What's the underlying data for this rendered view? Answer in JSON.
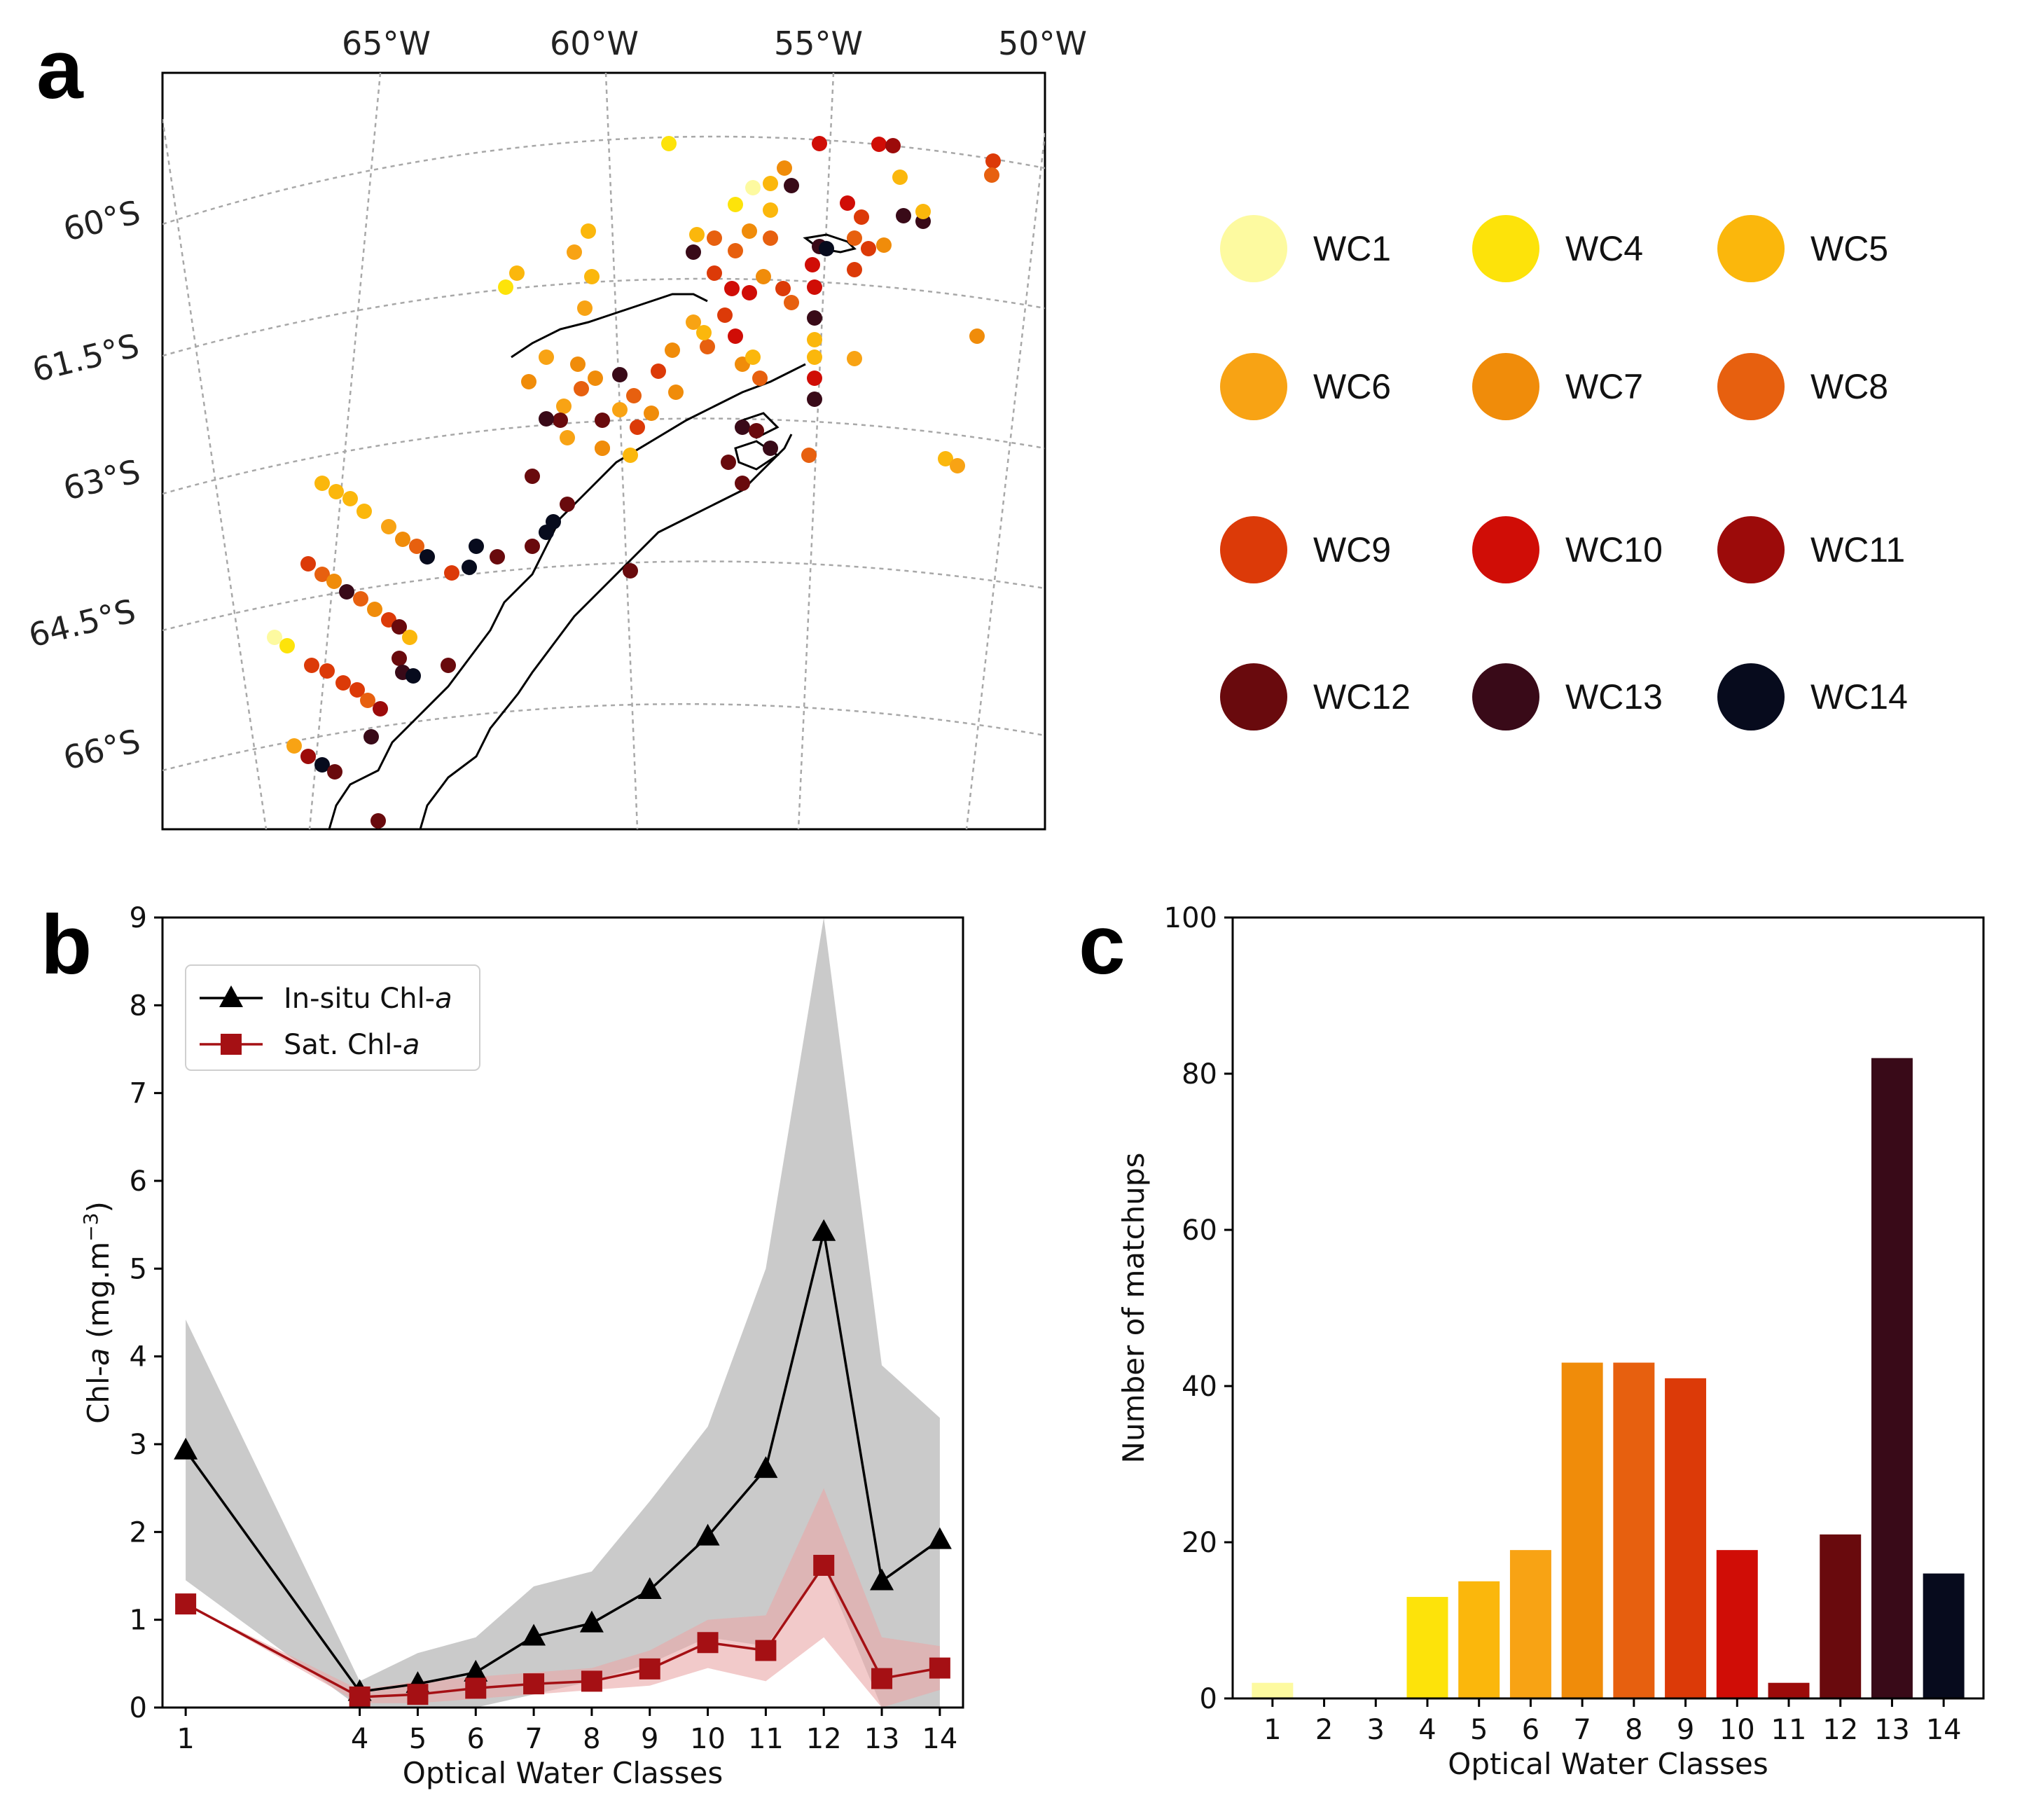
{
  "panels": {
    "a": "a",
    "b": "b",
    "c": "c"
  },
  "map": {
    "lon_labels": [
      "65°W",
      "60°W",
      "55°W",
      "50°W"
    ],
    "lat_labels": [
      "60°S",
      "61.5°S",
      "63°S",
      "64.5°S",
      "66°S"
    ],
    "legend": [
      {
        "label": "WC1",
        "color": "#fdfaa0"
      },
      {
        "label": "WC4",
        "color": "#fde30a"
      },
      {
        "label": "WC5",
        "color": "#fbb70c"
      },
      {
        "label": "WC6",
        "color": "#f8a314"
      },
      {
        "label": "WC7",
        "color": "#f08c0a"
      },
      {
        "label": "WC8",
        "color": "#e7600f"
      },
      {
        "label": "WC9",
        "color": "#dc3a08"
      },
      {
        "label": "WC10",
        "color": "#d00d06"
      },
      {
        "label": "WC11",
        "color": "#9c0b0a"
      },
      {
        "label": "WC12",
        "color": "#690a0d"
      },
      {
        "label": "WC13",
        "color": "#390a18"
      },
      {
        "label": "WC14",
        "color": "#070b1d"
      }
    ]
  },
  "chart_data": [
    {
      "type": "line",
      "panel": "b",
      "xlabel": "Optical Water Classes",
      "ylabel": "Chl-a (mg.m⁻³)",
      "ylabel_parts": [
        "Chl-",
        "a",
        " (mg.m",
        "−3",
        ")"
      ],
      "xlim": [
        0.6,
        14.4
      ],
      "ylim": [
        0,
        9
      ],
      "x": [
        1,
        4,
        5,
        6,
        7,
        8,
        9,
        10,
        11,
        12,
        13,
        14
      ],
      "xtick_labels": [
        "1",
        "4",
        "5",
        "6",
        "7",
        "8",
        "9",
        "10",
        "11",
        "12",
        "13",
        "14"
      ],
      "ytick_labels": [
        "0",
        "1",
        "2",
        "3",
        "4",
        "5",
        "6",
        "7",
        "8",
        "9"
      ],
      "yticks": [
        0,
        1,
        2,
        3,
        4,
        5,
        6,
        7,
        8,
        9
      ],
      "legend_position": "upper-left",
      "series": [
        {
          "name": "In-situ Chl-a",
          "legend_prefix": "In-situ Chl-",
          "legend_italic": "a",
          "color": "#000000",
          "marker": "triangle",
          "band_color": "#bdbdbd",
          "values": [
            2.93,
            0.18,
            0.27,
            0.4,
            0.81,
            0.96,
            1.34,
            1.95,
            2.72,
            5.42,
            1.44,
            1.91
          ],
          "band_lower": [
            1.45,
            0.0,
            0.0,
            0.0,
            0.15,
            0.3,
            0.5,
            0.8,
            0.7,
            1.6,
            0.0,
            0.0
          ],
          "band_upper": [
            4.42,
            0.3,
            0.62,
            0.8,
            1.38,
            1.55,
            2.35,
            3.2,
            5.0,
            9.0,
            3.9,
            3.3
          ]
        },
        {
          "name": "Sat. Chl-a",
          "legend_prefix": "Sat. Chl-",
          "legend_italic": "a",
          "color": "#a51014",
          "marker": "square",
          "band_color": "#e9a6a6",
          "values": [
            1.18,
            0.12,
            0.15,
            0.22,
            0.27,
            0.3,
            0.44,
            0.74,
            0.65,
            1.62,
            0.33,
            0.45
          ],
          "band_lower": [
            1.18,
            0.05,
            0.05,
            0.1,
            0.15,
            0.2,
            0.25,
            0.45,
            0.3,
            0.8,
            0.0,
            0.2
          ],
          "band_upper": [
            1.18,
            0.2,
            0.3,
            0.35,
            0.4,
            0.45,
            0.65,
            1.0,
            1.05,
            2.5,
            0.8,
            0.7
          ]
        }
      ]
    },
    {
      "type": "bar",
      "panel": "c",
      "xlabel": "Optical Water Classes",
      "ylabel": "Number of matchups",
      "ylim": [
        0,
        100
      ],
      "yticks": [
        0,
        20,
        40,
        60,
        80,
        100
      ],
      "ytick_labels": [
        "0",
        "20",
        "40",
        "60",
        "80",
        "100"
      ],
      "categories": [
        "1",
        "2",
        "3",
        "4",
        "5",
        "6",
        "7",
        "8",
        "9",
        "10",
        "11",
        "12",
        "13",
        "14"
      ],
      "values": [
        2,
        0,
        0,
        13,
        15,
        19,
        43,
        43,
        41,
        19,
        2,
        21,
        82,
        16
      ],
      "colors": [
        "#fdfaa0",
        "#fdfaa0",
        "#fdfaa0",
        "#fde30a",
        "#fbb70c",
        "#f8a314",
        "#f08c0a",
        "#e7600f",
        "#dc3a08",
        "#d00d06",
        "#9c0b0a",
        "#690a0d",
        "#390a18",
        "#070b1d"
      ]
    }
  ]
}
